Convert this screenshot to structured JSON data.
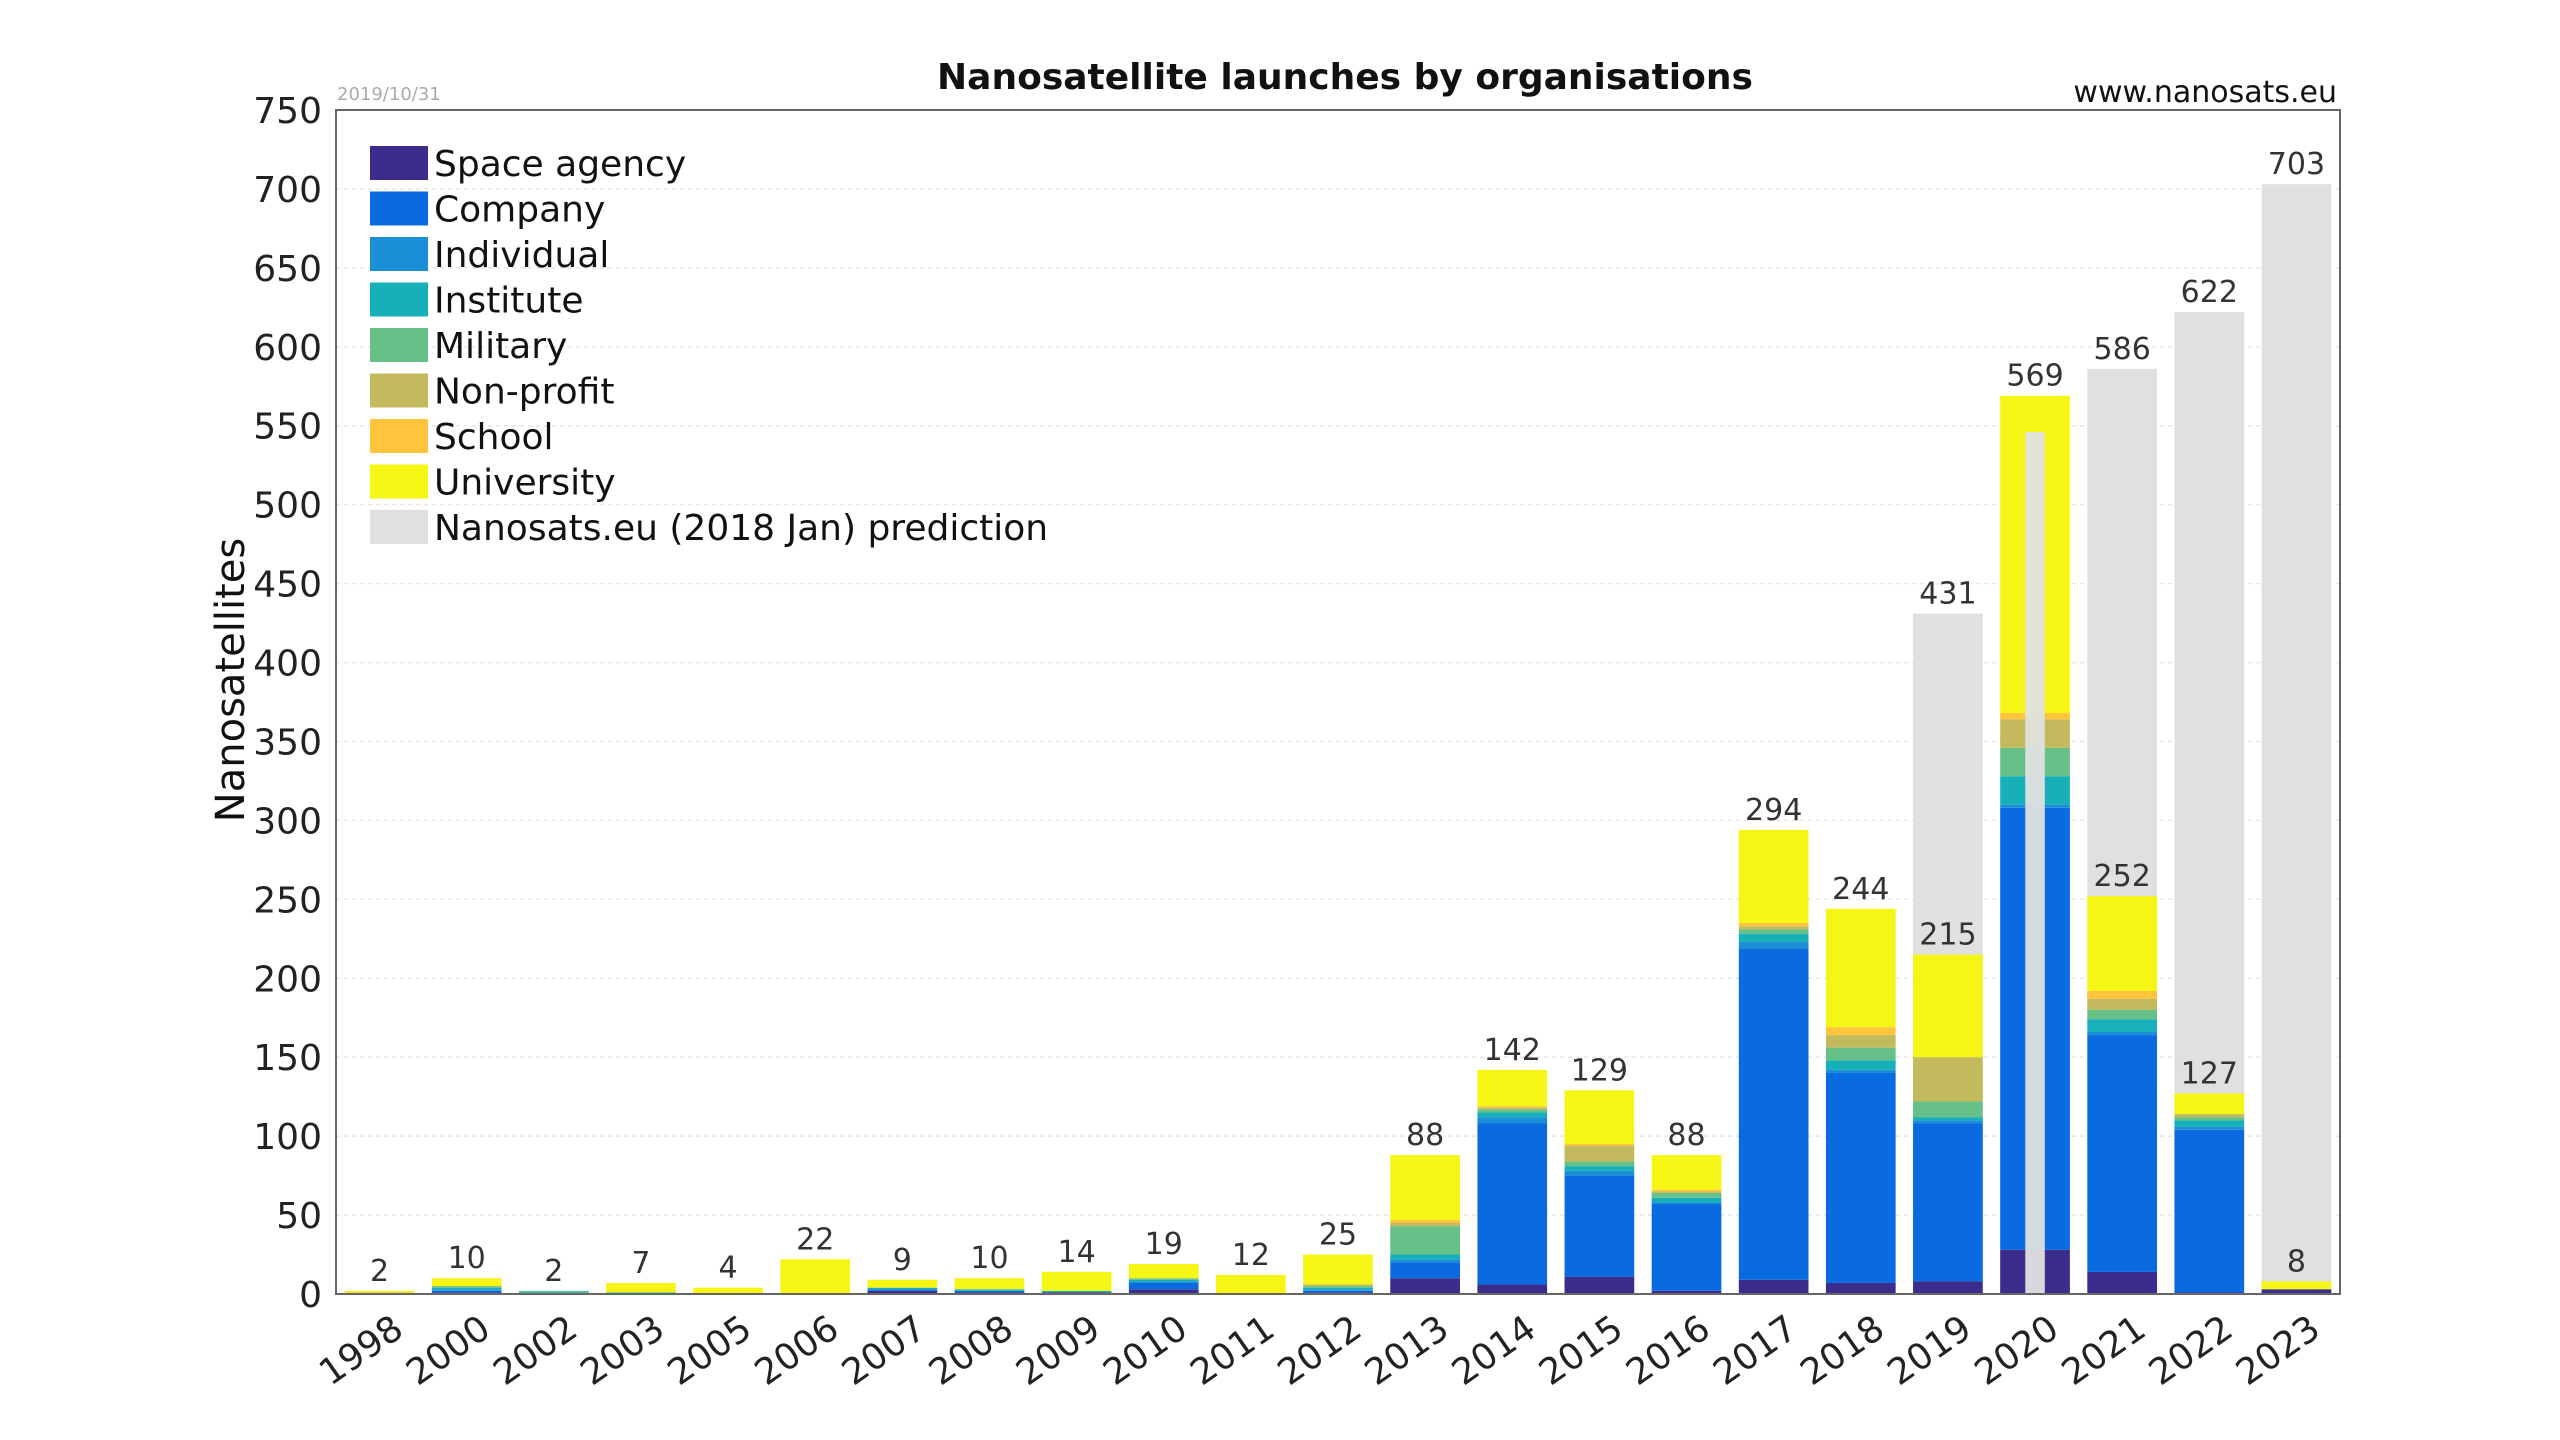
{
  "chart_data": {
    "type": "bar",
    "title": "Nanosatellite launches by organisations",
    "source": "www.nanosats.eu",
    "date": "2019/10/31",
    "ylabel": "Nanosatellites",
    "xlabel": "",
    "ylim": [
      0,
      750
    ],
    "yticks": [
      0,
      50,
      100,
      150,
      200,
      250,
      300,
      350,
      400,
      450,
      500,
      550,
      600,
      650,
      700,
      750
    ],
    "grid": true,
    "legend_position": "top-left",
    "stacked": true,
    "categories": [
      "1998",
      "2000",
      "2002",
      "2003",
      "2005",
      "2006",
      "2007",
      "2008",
      "2009",
      "2010",
      "2011",
      "2012",
      "2013",
      "2014",
      "2015",
      "2016",
      "2017",
      "2018",
      "2019",
      "2020",
      "2021",
      "2022",
      "2023"
    ],
    "series": [
      {
        "name": "Space agency",
        "color": "#3a2d8c",
        "values": [
          0,
          1,
          0,
          0,
          0,
          0,
          2,
          1,
          1,
          3,
          0,
          1,
          10,
          6,
          11,
          2,
          9,
          7,
          8,
          28,
          14,
          1,
          3
        ]
      },
      {
        "name": "Company",
        "color": "#0a6be0",
        "values": [
          0,
          1,
          0,
          0,
          0,
          0,
          1,
          1,
          0,
          4,
          0,
          1,
          10,
          102,
          64,
          55,
          210,
          133,
          100,
          280,
          150,
          103,
          0
        ]
      },
      {
        "name": "Individual",
        "color": "#1a8fd6",
        "values": [
          0,
          1,
          0,
          0,
          0,
          0,
          0,
          0,
          0,
          1,
          0,
          1,
          2,
          4,
          3,
          1,
          4,
          2,
          2,
          2,
          2,
          2,
          0
        ]
      },
      {
        "name": "Institute",
        "color": "#17b0b8",
        "values": [
          0,
          1,
          1,
          1,
          0,
          0,
          1,
          1,
          1,
          1,
          0,
          1,
          3,
          3,
          3,
          3,
          5,
          6,
          2,
          18,
          8,
          4,
          0
        ]
      },
      {
        "name": "Military",
        "color": "#66c087",
        "values": [
          0,
          1,
          1,
          0,
          0,
          0,
          0,
          0,
          0,
          1,
          0,
          1,
          18,
          2,
          3,
          3,
          3,
          8,
          10,
          18,
          6,
          2,
          0
        ]
      },
      {
        "name": "Non-profit",
        "color": "#c2ba5c",
        "values": [
          0,
          0,
          0,
          0,
          0,
          0,
          0,
          0,
          0,
          0,
          0,
          1,
          2,
          1,
          10,
          1,
          2,
          8,
          28,
          18,
          7,
          2,
          0
        ]
      },
      {
        "name": "School",
        "color": "#ffc43b",
        "values": [
          1,
          0,
          0,
          0,
          0,
          0,
          0,
          0,
          0,
          0,
          0,
          0,
          2,
          1,
          1,
          1,
          2,
          5,
          0,
          4,
          5,
          0,
          0
        ]
      },
      {
        "name": "University",
        "color": "#f5f516",
        "values": [
          1,
          5,
          0,
          6,
          4,
          22,
          5,
          7,
          12,
          9,
          12,
          19,
          41,
          23,
          34,
          22,
          59,
          75,
          65,
          201,
          60,
          13,
          5
        ]
      }
    ],
    "totals": [
      2,
      10,
      2,
      7,
      4,
      22,
      9,
      10,
      14,
      19,
      12,
      25,
      88,
      142,
      129,
      88,
      294,
      244,
      215,
      569,
      252,
      127,
      8
    ],
    "prediction": {
      "name": "Nanosats.eu (2018 Jan) prediction",
      "color": "#e0e0e0",
      "categories": [
        "2019",
        "2020",
        "2021",
        "2022",
        "2023"
      ],
      "values": [
        431,
        546,
        586,
        622,
        703
      ],
      "labels": [
        "431",
        "",
        "586",
        "622",
        "703"
      ]
    }
  }
}
